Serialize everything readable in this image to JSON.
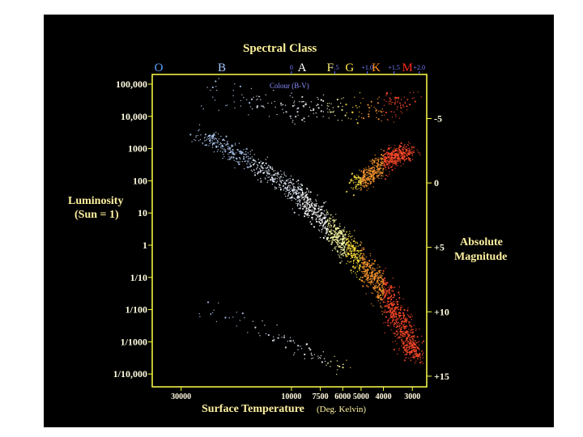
{
  "chart_data": {
    "type": "scatter",
    "title": "Spectral Class",
    "xlabel": "Surface Temperature",
    "xlabel_unit": "(Deg. Kelvin)",
    "ylabel_left": [
      "Luminosity",
      "(Sun = 1)"
    ],
    "ylabel_right": [
      "Absolute",
      "Magnitude"
    ],
    "top_axis_label": "Colour (B-V)",
    "top_axis_ticks": [
      "0",
      "+.5",
      "+1.0",
      "+1.5",
      "+2.0"
    ],
    "x_ticks": [
      "30000",
      "10000",
      "7500",
      "6000",
      "5000",
      "4000",
      "3000"
    ],
    "x_tick_values": [
      30000,
      10000,
      7500,
      6000,
      5000,
      4000,
      3000
    ],
    "x_scale": "log-reversed",
    "xlim": [
      40000,
      2600
    ],
    "y_ticks": [
      "100,000",
      "10,000",
      "1000",
      "100",
      "10",
      "1",
      "1/10",
      "1/100",
      "1/1000",
      "1/10,000"
    ],
    "y_tick_values": [
      100000,
      10000,
      1000,
      100,
      10,
      1,
      0.1,
      0.01,
      0.001,
      0.0001
    ],
    "y_scale": "log",
    "ylim": [
      4e-05,
      200000
    ],
    "magnitude_ticks": [
      "-5",
      "0",
      "+5",
      "+10",
      "+15"
    ],
    "magnitude_values": [
      -5,
      0,
      5,
      10,
      15
    ],
    "spectral_classes": [
      {
        "label": "O",
        "color": "#5aa0ff"
      },
      {
        "label": "B",
        "color": "#a8c8ff"
      },
      {
        "label": "A",
        "color": "#ffffff"
      },
      {
        "label": "F",
        "color": "#fff27a"
      },
      {
        "label": "G",
        "color": "#ffe24a"
      },
      {
        "label": "K",
        "color": "#ff8a1a"
      },
      {
        "label": "M",
        "color": "#ff2a1a"
      }
    ],
    "regions": [
      {
        "name": "main-sequence",
        "points": [
          [
            25000,
            3000
          ],
          [
            15000,
            400
          ],
          [
            10000,
            60
          ],
          [
            8000,
            12
          ],
          [
            6500,
            2.5
          ],
          [
            5800,
            1
          ],
          [
            5000,
            0.3
          ],
          [
            4300,
            0.08
          ],
          [
            3800,
            0.02
          ],
          [
            3400,
            0.004
          ],
          [
            3100,
            0.001
          ],
          [
            2900,
            0.0003
          ]
        ]
      },
      {
        "name": "giants",
        "points": [
          [
            5200,
            80
          ],
          [
            4700,
            120
          ],
          [
            4200,
            250
          ],
          [
            3800,
            500
          ],
          [
            3400,
            700
          ],
          [
            3100,
            800
          ]
        ]
      },
      {
        "name": "supergiants",
        "points": [
          [
            25000,
            60000
          ],
          [
            10000,
            20000
          ],
          [
            6000,
            15000
          ],
          [
            4000,
            20000
          ],
          [
            3200,
            25000
          ]
        ]
      },
      {
        "name": "white-dwarfs",
        "points": [
          [
            25000,
            0.01
          ],
          [
            15000,
            0.003
          ],
          [
            10000,
            0.001
          ],
          [
            8000,
            0.0004
          ],
          [
            6000,
            0.0002
          ]
        ]
      }
    ],
    "grid": false,
    "colors": {
      "axis": "#ffff4a",
      "text": "#fff6b0",
      "background": "#000000"
    }
  }
}
